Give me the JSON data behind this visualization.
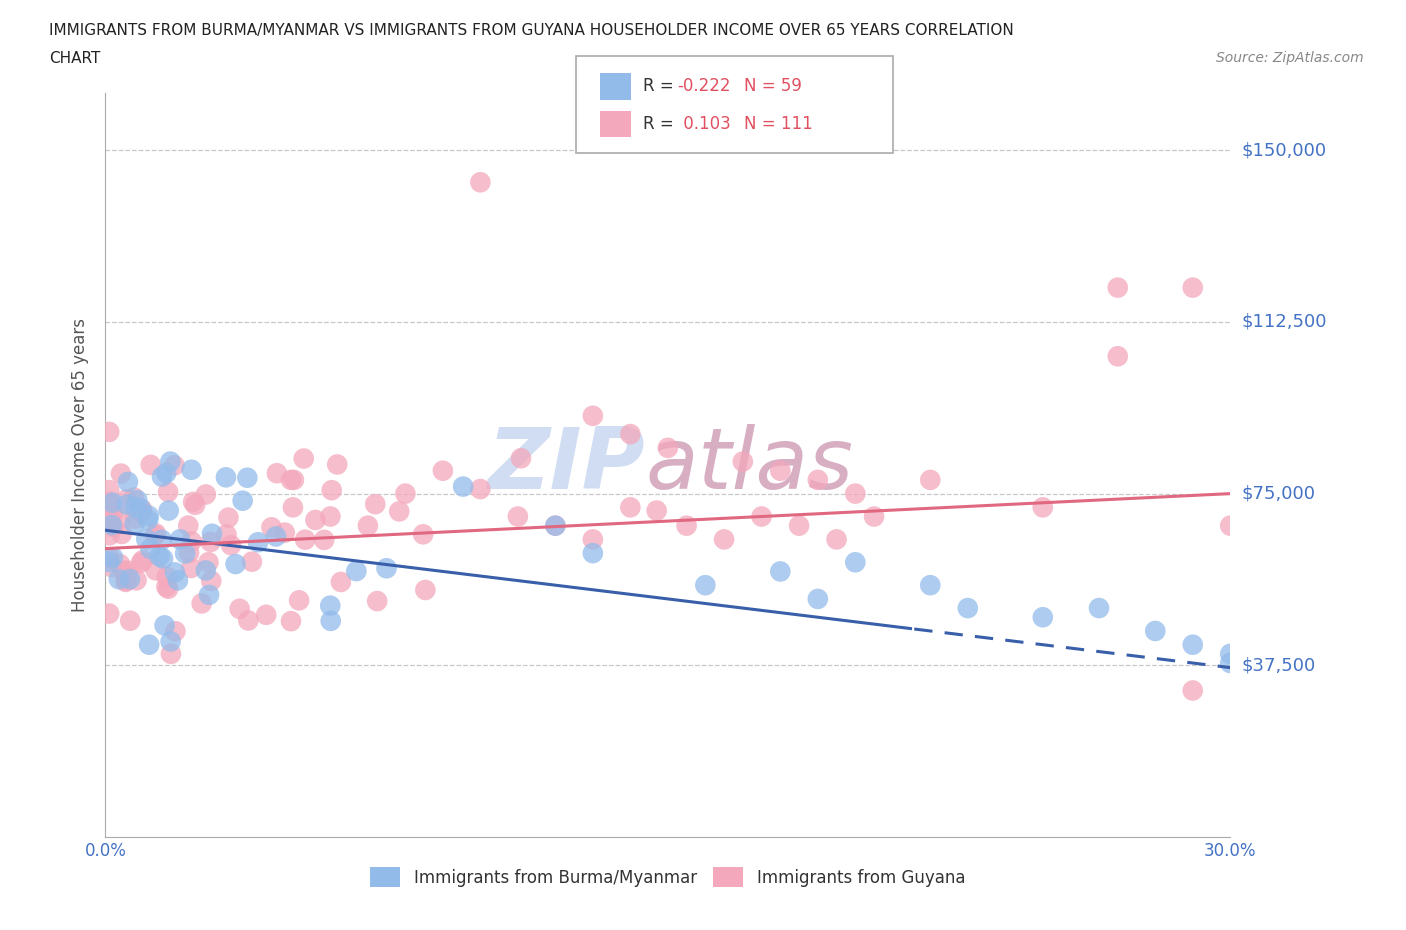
{
  "title_line1": "IMMIGRANTS FROM BURMA/MYANMAR VS IMMIGRANTS FROM GUYANA HOUSEHOLDER INCOME OVER 65 YEARS CORRELATION",
  "title_line2": "CHART",
  "source_text": "Source: ZipAtlas.com",
  "ylabel": "Householder Income Over 65 years",
  "xmin": 0.0,
  "xmax": 0.3,
  "ymin": 0,
  "ymax": 162500,
  "yticks": [
    0,
    37500,
    75000,
    112500,
    150000
  ],
  "ytick_labels": [
    "",
    "$37,500",
    "$75,000",
    "$112,500",
    "$150,000"
  ],
  "xticks": [
    0.0,
    0.05,
    0.1,
    0.15,
    0.2,
    0.25,
    0.3
  ],
  "xtick_labels": [
    "0.0%",
    "",
    "",
    "",
    "",
    "",
    "30.0%"
  ],
  "grid_color": "#c8c8c8",
  "watermark": "ZIPatlas",
  "watermark_color_zip": "#c8d8f0",
  "watermark_color_atlas": "#d0a0b8",
  "legend_R_blue": "-0.222",
  "legend_N_blue": "59",
  "legend_R_pink": "0.103",
  "legend_N_pink": "111",
  "blue_dot_color": "#92bbea",
  "pink_dot_color": "#f4a8bc",
  "blue_line_color": "#3a5faa",
  "pink_line_color": "#e06880",
  "tick_label_color": "#4472c4",
  "legend_text_color": "#333333",
  "legend_value_color": "#e05060",
  "source_color": "#888888"
}
